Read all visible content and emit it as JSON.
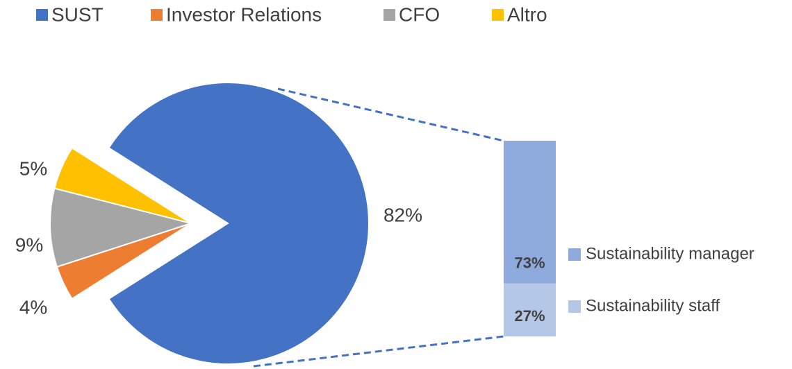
{
  "chart_data": {
    "type": "pie",
    "categories": [
      "SUST",
      "Investor Relations",
      "CFO",
      "Altro"
    ],
    "values": [
      82,
      4,
      9,
      5
    ],
    "value_labels": [
      "82%",
      "4%",
      "9%",
      "5%"
    ],
    "colors": [
      "#4472c4",
      "#ed7d31",
      "#a5a5a5",
      "#ffc000"
    ],
    "legend": "top",
    "secondary": {
      "type": "bar",
      "categories": [
        "Sustainability manager",
        "Sustainability staff"
      ],
      "values": [
        73,
        27
      ],
      "value_labels": [
        "73%",
        "27%"
      ],
      "colors": [
        "#8faadc",
        "#b4c7e7"
      ],
      "legend": "right"
    }
  }
}
